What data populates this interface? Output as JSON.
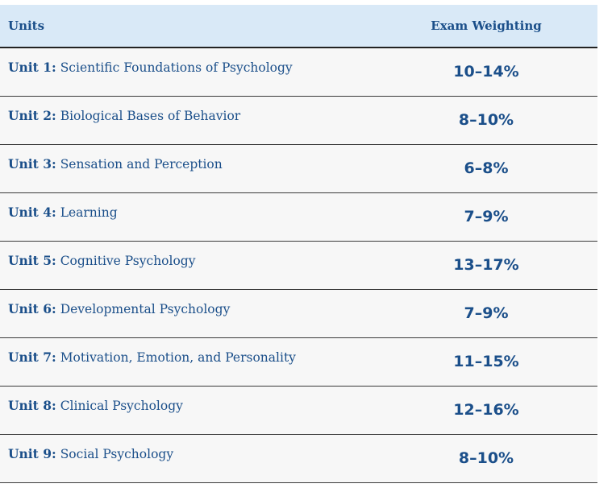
{
  "header": {
    "units_label": "Units",
    "weighting_label": "Exam Weighting"
  },
  "rows": [
    {
      "unit": "Unit 1:",
      "title": "Scientific Foundations of Psychology",
      "weighting": "10–14%"
    },
    {
      "unit": "Unit 2:",
      "title": "Biological Bases of Behavior",
      "weighting": "8–10%"
    },
    {
      "unit": "Unit 3:",
      "title": "Sensation and Perception",
      "weighting": "6–8%"
    },
    {
      "unit": "Unit 4:",
      "title": "Learning",
      "weighting": "7–9%"
    },
    {
      "unit": "Unit 5:",
      "title": "Cognitive Psychology",
      "weighting": "13–17%"
    },
    {
      "unit": "Unit 6:",
      "title": "Developmental Psychology",
      "weighting": "7–9%"
    },
    {
      "unit": "Unit 7:",
      "title": "Motivation, Emotion, and Personality",
      "weighting": "11–15%"
    },
    {
      "unit": "Unit 8:",
      "title": "Clinical Psychology",
      "weighting": "12–16%"
    },
    {
      "unit": "Unit 9:",
      "title": "Social Psychology",
      "weighting": "8–10%"
    }
  ],
  "colors": {
    "text": "#1b4f8a",
    "header_bg": "#d9e9f7",
    "row_bg": "#f7f7f7"
  }
}
